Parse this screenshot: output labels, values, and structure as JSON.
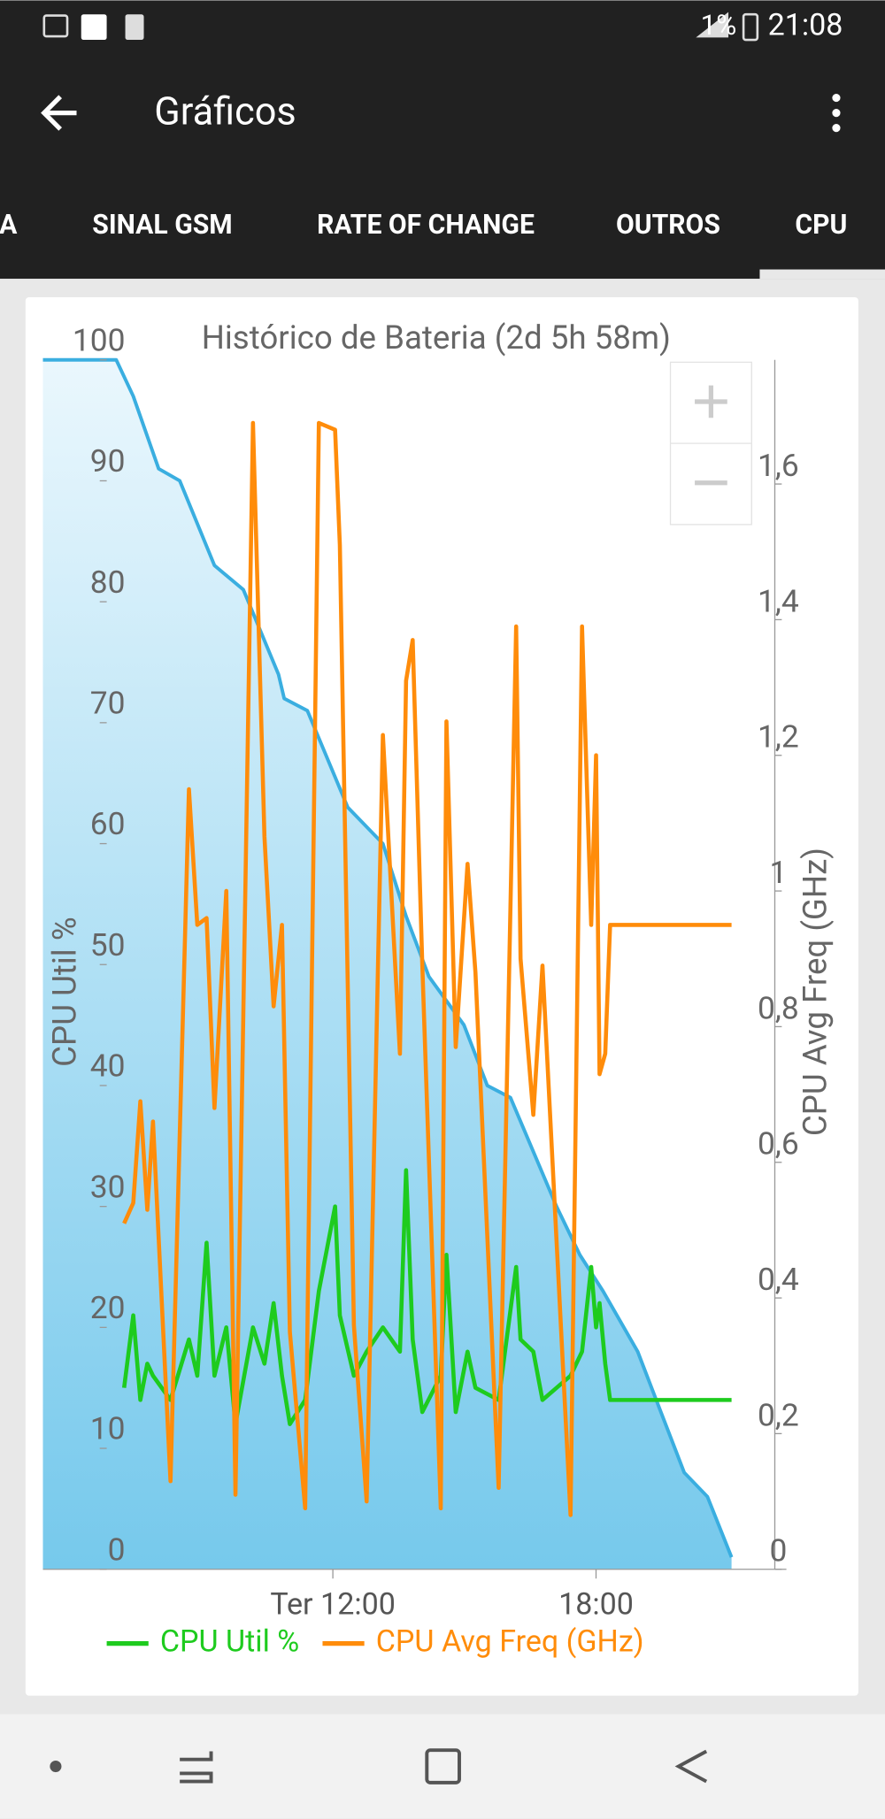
{
  "status_bar": {
    "battery": "1%",
    "time": "21:08"
  },
  "app_bar": {
    "title": "Gráficos"
  },
  "tabs": [
    "A",
    "SINAL GSM",
    "RATE OF CHANGE",
    "OUTROS",
    "CPU"
  ],
  "chart_data": {
    "type": "line",
    "title": "Histórico de Bateria (2d 5h 58m)",
    "y_label": "CPU Util %",
    "y2_label": "CPU Avg Freq (GHz)",
    "x": [
      7.24,
      7.45,
      7.61,
      7.77,
      7.9,
      8.3,
      8.72,
      8.91,
      9.12,
      9.3,
      9.57,
      9.78,
      10.18,
      10.44,
      10.65,
      10.84,
      11.02,
      11.37,
      11.68,
      12.05,
      12.16,
      12.48,
      12.77,
      13.14,
      13.53,
      13.67,
      13.82,
      14.04,
      14.46,
      14.59,
      14.8,
      15.07,
      15.25,
      15.78,
      16.18,
      16.28,
      16.57,
      16.78,
      17.42,
      17.68,
      17.89,
      18.0,
      18.08,
      18.21,
      18.32,
      21.09
    ],
    "xlim": [
      5.39,
      22.34
    ],
    "xticks": [
      {
        "value": 12,
        "label": "Ter 12:00"
      },
      {
        "value": 18,
        "label": "18:00"
      }
    ],
    "ylim": [
      0,
      100
    ],
    "yticks": [
      0,
      10,
      20,
      30,
      40,
      50,
      60,
      70,
      80,
      90,
      100
    ],
    "y2lim": [
      0,
      1.783
    ],
    "y2ticks": [
      0,
      {
        "value": 0.2,
        "label": "0,2"
      },
      {
        "value": 0.4,
        "label": "0,4"
      },
      {
        "value": 0.6,
        "label": "0,6"
      },
      {
        "value": 0.8,
        "label": "0,8"
      },
      1,
      {
        "value": 1.2,
        "label": "1,2"
      },
      {
        "value": 1.4,
        "label": "1,4"
      },
      {
        "value": 1.6,
        "label": "1,6"
      }
    ],
    "series": [
      {
        "color": "#3aaee0",
        "fill": true,
        "x": [
          5.39,
          7.06,
          7.45,
          8.03,
          8.51,
          9.3,
          9.96,
          10.76,
          10.89,
          11.42,
          12.34,
          13.14,
          13.67,
          14.19,
          14.99,
          15.52,
          16.05,
          17.1,
          17.63,
          18.16,
          18.95,
          19.48,
          20.01,
          20.54,
          21.09
        ],
        "values": [
          100,
          100,
          97,
          91,
          90,
          83,
          81,
          74,
          72,
          71,
          63,
          60,
          54,
          49,
          45,
          40,
          39,
          30,
          26,
          23,
          18,
          13,
          8,
          6,
          1
        ]
      },
      {
        "name": "CPU Util %",
        "color": "#1ecb1e",
        "values": [
          15,
          21,
          14,
          17,
          16,
          14,
          19,
          16,
          27,
          16,
          20,
          12,
          20,
          17,
          22,
          16,
          12,
          14,
          23,
          30,
          21,
          16,
          18,
          20,
          18,
          33,
          19,
          13,
          16,
          26,
          13,
          18,
          15,
          14,
          25,
          19,
          18,
          14,
          16,
          18,
          25,
          20,
          22,
          17,
          14,
          14
        ]
      },
      {
        "name": "CPU Avg Freq (GHz)",
        "color": "#ff8c0a",
        "axis": "y2",
        "values": [
          0.51,
          0.54,
          0.69,
          0.53,
          0.66,
          0.13,
          1.15,
          0.95,
          0.96,
          0.68,
          1.0,
          0.11,
          1.69,
          1.08,
          0.83,
          0.95,
          0.35,
          0.09,
          1.69,
          1.68,
          1.51,
          0.36,
          0.1,
          1.23,
          0.76,
          1.31,
          1.37,
          0.89,
          0.09,
          1.25,
          0.77,
          1.04,
          0.88,
          0.12,
          1.39,
          0.9,
          0.67,
          0.89,
          0.08,
          1.39,
          0.95,
          1.2,
          0.73,
          0.76,
          0.95,
          0.95
        ]
      }
    ]
  }
}
